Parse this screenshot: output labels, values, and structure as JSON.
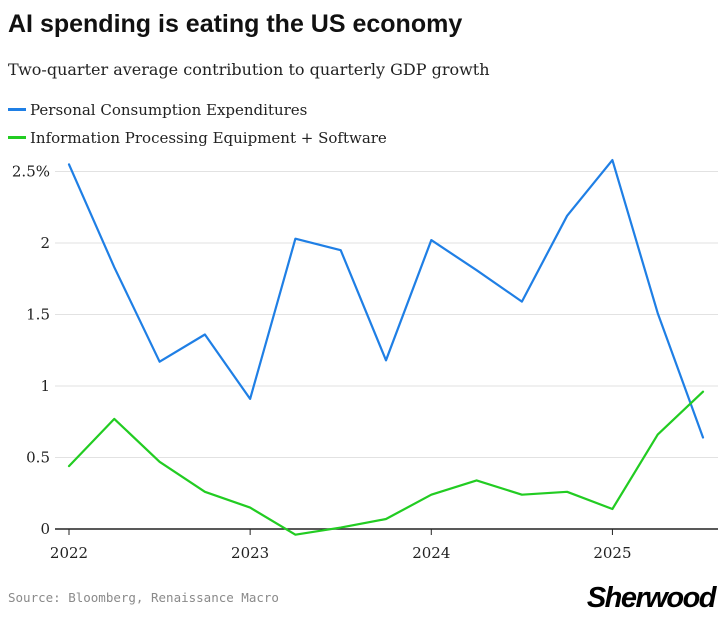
{
  "header": {
    "title": "AI spending is eating the US economy",
    "subtitle": "Two-quarter average contribution to quarterly GDP growth"
  },
  "footer": {
    "source": "Source: Bloomberg, Renaissance Macro",
    "logo": "Sherwood"
  },
  "chart_data": {
    "type": "line",
    "title": "AI spending is eating the US economy",
    "subtitle": "Two-quarter average contribution to quarterly GDP growth",
    "xlabel": "",
    "ylabel": "",
    "x": [
      "2022-Q1",
      "2022-Q2",
      "2022-Q3",
      "2022-Q4",
      "2023-Q1",
      "2023-Q2",
      "2023-Q3",
      "2023-Q4",
      "2024-Q1",
      "2024-Q2",
      "2024-Q3",
      "2024-Q4",
      "2025-Q1",
      "2025-Q2",
      "2025-Q3"
    ],
    "x_tick_labels": [
      "2022",
      "2023",
      "2024",
      "2025"
    ],
    "y_tick_labels": [
      "0",
      "0.5",
      "1",
      "1.5",
      "2",
      "2.5%"
    ],
    "y_ticks": [
      0,
      0.5,
      1,
      1.5,
      2,
      2.5
    ],
    "ylim": [
      -0.05,
      2.65
    ],
    "grid": "horizontal",
    "legend_position": "top",
    "series": [
      {
        "name": "Personal Consumption Expenditures",
        "color": "#1f7fe5",
        "values": [
          2.55,
          1.83,
          1.17,
          1.36,
          0.91,
          2.03,
          1.95,
          1.18,
          2.02,
          1.81,
          1.59,
          2.19,
          2.58,
          1.51,
          0.64
        ]
      },
      {
        "name": "Information Processing Equipment + Software",
        "color": "#22cc22",
        "values": [
          0.44,
          0.77,
          0.47,
          0.26,
          0.15,
          -0.04,
          0.01,
          0.07,
          0.24,
          0.34,
          0.24,
          0.26,
          0.14,
          0.66,
          0.96
        ]
      }
    ]
  }
}
